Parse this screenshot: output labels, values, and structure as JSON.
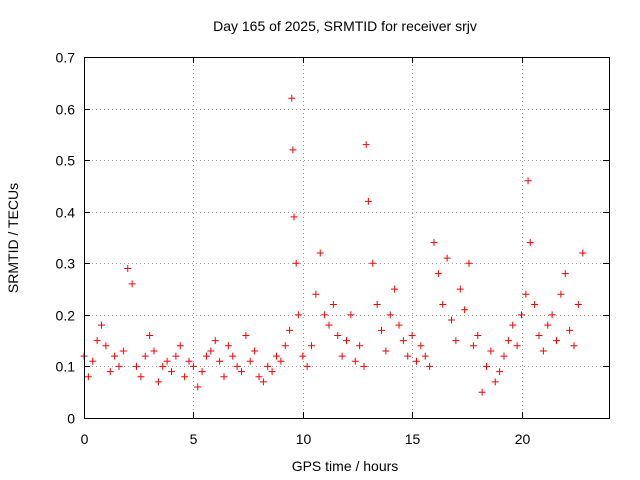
{
  "chart_data": {
    "type": "scatter",
    "title": "Day 165 of 2025, SRMTID for receiver srjv",
    "xlabel": "GPS time / hours",
    "ylabel": "SRMTID / TECUs",
    "xlim": [
      0,
      24
    ],
    "ylim": [
      0,
      0.7
    ],
    "xticks": [
      0,
      5,
      10,
      15,
      20
    ],
    "xtick_labels": [
      "0",
      "5",
      "10",
      "15",
      "20"
    ],
    "yticks": [
      0,
      0.1,
      0.2,
      0.3,
      0.4,
      0.5,
      0.6,
      0.7
    ],
    "ytick_labels": [
      "0",
      "0.1",
      "0.2",
      "0.3",
      "0.4",
      "0.5",
      "0.6",
      "0.7"
    ],
    "grid": true,
    "marker": "+",
    "color": "#ff0000",
    "series": [
      {
        "name": "srjv",
        "x": [
          0.0,
          0.2,
          0.4,
          0.6,
          0.8,
          1.0,
          1.2,
          1.4,
          1.6,
          1.8,
          2.0,
          2.2,
          2.4,
          2.6,
          2.8,
          3.0,
          3.2,
          3.4,
          3.6,
          3.8,
          4.0,
          4.2,
          4.4,
          4.6,
          4.8,
          5.0,
          5.2,
          5.4,
          5.6,
          5.8,
          6.0,
          6.2,
          6.4,
          6.6,
          6.8,
          7.0,
          7.2,
          7.4,
          7.6,
          7.8,
          8.0,
          8.2,
          8.4,
          8.6,
          8.8,
          9.0,
          9.2,
          9.4,
          9.5,
          9.55,
          9.6,
          9.7,
          9.8,
          10.0,
          10.2,
          10.4,
          10.6,
          10.8,
          11.0,
          11.2,
          11.4,
          11.6,
          11.8,
          12.0,
          12.2,
          12.4,
          12.6,
          12.8,
          12.9,
          13.0,
          13.2,
          13.4,
          13.6,
          13.8,
          14.0,
          14.2,
          14.4,
          14.6,
          14.8,
          15.0,
          15.2,
          15.4,
          15.6,
          15.8,
          16.0,
          16.2,
          16.4,
          16.6,
          16.8,
          17.0,
          17.2,
          17.4,
          17.6,
          17.8,
          18.0,
          18.2,
          18.4,
          18.6,
          18.8,
          19.0,
          19.2,
          19.4,
          19.6,
          19.8,
          20.0,
          20.2,
          20.3,
          20.4,
          20.6,
          20.8,
          21.0,
          21.2,
          21.4,
          21.6,
          21.8,
          22.0,
          22.2,
          22.4,
          22.6,
          22.8
        ],
        "y": [
          0.12,
          0.08,
          0.11,
          0.15,
          0.18,
          0.14,
          0.09,
          0.12,
          0.1,
          0.13,
          0.29,
          0.26,
          0.1,
          0.08,
          0.12,
          0.16,
          0.13,
          0.07,
          0.1,
          0.11,
          0.09,
          0.12,
          0.14,
          0.08,
          0.11,
          0.1,
          0.06,
          0.09,
          0.12,
          0.13,
          0.15,
          0.11,
          0.08,
          0.14,
          0.12,
          0.1,
          0.09,
          0.16,
          0.11,
          0.13,
          0.08,
          0.07,
          0.1,
          0.09,
          0.12,
          0.11,
          0.14,
          0.17,
          0.62,
          0.52,
          0.39,
          0.3,
          0.2,
          0.12,
          0.1,
          0.14,
          0.24,
          0.32,
          0.2,
          0.18,
          0.22,
          0.16,
          0.12,
          0.15,
          0.2,
          0.11,
          0.14,
          0.1,
          0.53,
          0.42,
          0.3,
          0.22,
          0.17,
          0.13,
          0.2,
          0.25,
          0.18,
          0.15,
          0.12,
          0.16,
          0.11,
          0.14,
          0.12,
          0.1,
          0.34,
          0.28,
          0.22,
          0.31,
          0.19,
          0.15,
          0.25,
          0.21,
          0.3,
          0.14,
          0.16,
          0.05,
          0.1,
          0.13,
          0.07,
          0.09,
          0.12,
          0.15,
          0.18,
          0.14,
          0.2,
          0.24,
          0.46,
          0.34,
          0.22,
          0.16,
          0.13,
          0.18,
          0.2,
          0.15,
          0.24,
          0.28,
          0.17,
          0.14,
          0.22,
          0.32
        ]
      }
    ]
  }
}
